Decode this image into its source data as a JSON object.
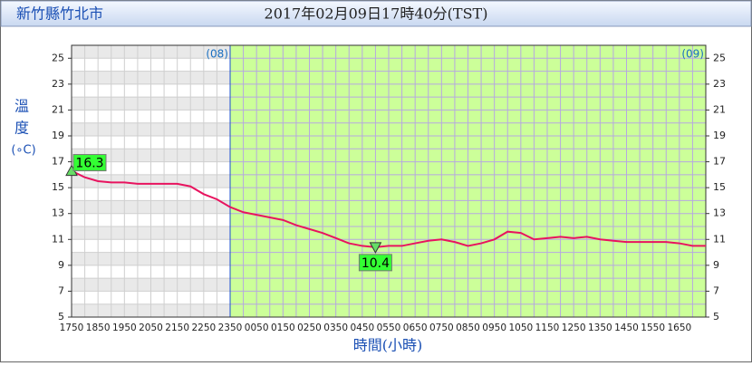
{
  "header": {
    "location": "新竹縣竹北市",
    "time": "2017年02月09日17時40分(TST)"
  },
  "chart_data": {
    "type": "line",
    "y_label_chars": [
      "溫",
      "度"
    ],
    "y_unit": "(∘C)",
    "x_label": "時間(小時)",
    "day_markers": [
      "(08)",
      "(09)"
    ],
    "categories": [
      "1750",
      null,
      "1850",
      null,
      "1950",
      null,
      "2050",
      null,
      "2150",
      null,
      "2250",
      null,
      "2350",
      null,
      "0050",
      null,
      "0150",
      null,
      "0250",
      null,
      "0350",
      null,
      "0450",
      null,
      "0550",
      null,
      "0650",
      null,
      "0750",
      null,
      "0850",
      null,
      "0950",
      null,
      "1050",
      null,
      "1150",
      null,
      "1250",
      null,
      "1350",
      null,
      "1450",
      null,
      "1550",
      null,
      "1650",
      null,
      null
    ],
    "series": [
      {
        "color": "#e8145f",
        "values": [
          16.3,
          15.8,
          15.5,
          15.4,
          15.4,
          15.3,
          15.3,
          15.3,
          15.3,
          15.1,
          14.5,
          14.1,
          13.5,
          13.1,
          12.9,
          12.7,
          12.5,
          12.1,
          11.8,
          11.5,
          11.1,
          10.7,
          10.5,
          10.4,
          10.5,
          10.5,
          10.7,
          10.9,
          11.0,
          10.8,
          10.5,
          10.7,
          11.0,
          11.6,
          11.5,
          11.0,
          11.1,
          11.2,
          11.1,
          11.2,
          11.0,
          10.9,
          10.8,
          10.8,
          10.8,
          10.8,
          10.7,
          10.5,
          10.5
        ]
      }
    ],
    "annotations": {
      "max": 16.3,
      "min": 10.4
    },
    "ylim": [
      5,
      26
    ],
    "yticks": [
      5,
      7,
      9,
      11,
      13,
      15,
      17,
      19,
      21,
      23,
      25
    ],
    "grid": true
  }
}
